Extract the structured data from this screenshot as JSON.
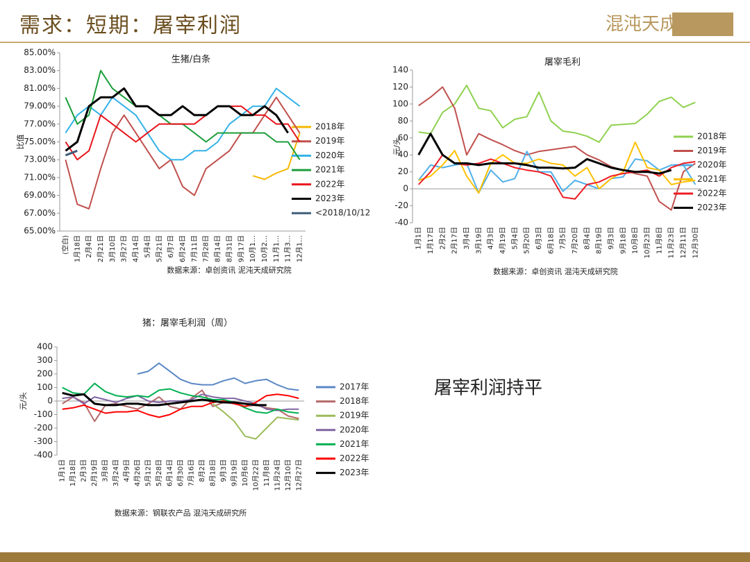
{
  "header": {
    "title": "需求：短期：屠宰利润",
    "logo": "混沌天成研究院"
  },
  "note": "屠宰利润持平",
  "chart_data": [
    {
      "type": "line",
      "title": "生猪/白条",
      "ylabel": "比值",
      "source": "数据来源：卓创资讯 泥沌天成研究院",
      "categories": [
        "(空白)",
        "1月18日",
        "2月4日",
        "2月21日",
        "3月10日",
        "3月27日",
        "4月14日",
        "5月4日",
        "5月21日",
        "6月7日",
        "6月24日",
        "7月11日",
        "7月28日",
        "8月14日",
        "8月31日",
        "9月17日",
        "10月1…",
        "10月2…",
        "11月1…",
        "11月3…",
        "12月1…"
      ],
      "ylim": [
        65,
        85
      ],
      "yticks": [
        {
          "value": 65,
          "label": "65.00%"
        },
        {
          "value": 67,
          "label": "67.00%"
        },
        {
          "value": 69,
          "label": "69.00%"
        },
        {
          "value": 71,
          "label": "71.00%"
        },
        {
          "value": 73,
          "label": "73.00%"
        },
        {
          "value": 75,
          "label": "75.00%"
        },
        {
          "value": 77,
          "label": "77.00%"
        },
        {
          "value": 79,
          "label": "79.00%"
        },
        {
          "value": 81,
          "label": "81.00%"
        },
        {
          "value": 83,
          "label": "83.00%"
        },
        {
          "value": 85,
          "label": "85.00%"
        }
      ],
      "series": [
        {
          "name": "2018年",
          "color": "#f5b800",
          "values": [
            null,
            null,
            null,
            null,
            null,
            null,
            null,
            null,
            null,
            null,
            null,
            null,
            null,
            null,
            null,
            null,
            71.2,
            70.8,
            71.5,
            72,
            76
          ]
        },
        {
          "name": "2019年",
          "color": "#c0504d",
          "values": [
            73,
            68,
            67.5,
            72,
            76,
            78,
            76,
            74,
            72,
            73,
            70,
            69,
            72,
            73,
            74,
            76,
            76,
            78,
            80,
            78,
            76
          ]
        },
        {
          "name": "2020年",
          "color": "#33b2e8",
          "values": [
            76,
            78,
            79,
            78,
            80,
            79,
            78,
            76,
            74,
            73,
            73,
            74,
            74,
            75,
            77,
            78,
            79,
            79,
            81,
            80,
            79
          ]
        },
        {
          "name": "2021年",
          "color": "#1a9e3a",
          "values": [
            80,
            77,
            78,
            83,
            81,
            80,
            79,
            79,
            78,
            77,
            77,
            76,
            75,
            76,
            76,
            76,
            76,
            76,
            75,
            75,
            73
          ]
        },
        {
          "name": "2022年",
          "color": "#e8141b",
          "values": [
            75,
            73,
            74,
            78,
            77,
            76,
            75,
            76,
            77,
            77,
            77,
            77,
            78,
            79,
            79,
            79,
            78,
            78,
            77,
            77,
            75
          ]
        },
        {
          "name": "2023年",
          "color": "#000000",
          "values": [
            74,
            75,
            79,
            80,
            80,
            81,
            79,
            79,
            78,
            78,
            79,
            78,
            78,
            79,
            79,
            78,
            78,
            79,
            78,
            76,
            null
          ]
        },
        {
          "name": "<2018/10/12",
          "color": "#3e5c7a",
          "values": [
            73.5,
            74,
            null,
            null,
            null,
            null,
            null,
            null,
            null,
            null,
            null,
            null,
            null,
            null,
            null,
            null,
            null,
            null,
            null,
            null,
            null
          ]
        }
      ]
    },
    {
      "type": "line",
      "title": "屠宰毛利",
      "ylabel": "元/头",
      "source": "数据来源：卓创资讯 混沌天成研究院",
      "categories": [
        "1月1日",
        "1月17日",
        "2月2日",
        "2月17日",
        "3月4日",
        "3月19日",
        "4月3日",
        "4月19日",
        "5月4日",
        "5月20日",
        "6月3日",
        "6月18日",
        "7月5日",
        "7月20日",
        "8月4日",
        "8月19日",
        "9月3日",
        "9月18日",
        "10月8日",
        "10月23日",
        "11月8日",
        "11月23日",
        "12月11日",
        "12月30日"
      ],
      "ylim": [
        -40,
        140
      ],
      "yticks": [
        -40,
        -20,
        0,
        20,
        40,
        60,
        80,
        100,
        120,
        140
      ],
      "series": [
        {
          "name": "2018年",
          "color": "#8fd14f",
          "values": [
            67,
            65,
            90,
            100,
            122,
            95,
            92,
            72,
            82,
            85,
            114,
            80,
            68,
            66,
            62,
            55,
            75,
            76,
            77,
            88,
            103,
            108,
            96,
            102
          ]
        },
        {
          "name": "2019年",
          "color": "#c0504d",
          "values": [
            98,
            108,
            120,
            95,
            40,
            65,
            58,
            52,
            45,
            40,
            44,
            46,
            48,
            50,
            40,
            34,
            26,
            22,
            18,
            15,
            -15,
            -25,
            20,
            30
          ]
        },
        {
          "name": "2020年",
          "color": "#4fb0e8",
          "values": [
            10,
            28,
            25,
            28,
            30,
            -5,
            22,
            8,
            12,
            44,
            20,
            20,
            -3,
            10,
            5,
            0,
            12,
            14,
            35,
            33,
            22,
            28,
            28,
            5
          ]
        },
        {
          "name": "2021年",
          "color": "#ffc000",
          "values": [
            10,
            15,
            28,
            45,
            15,
            -5,
            30,
            40,
            30,
            30,
            35,
            30,
            28,
            15,
            25,
            0,
            12,
            20,
            55,
            25,
            22,
            5,
            8,
            10
          ]
        },
        {
          "name": "2022年",
          "color": "#ee1c25",
          "values": [
            5,
            20,
            40,
            30,
            28,
            30,
            35,
            30,
            25,
            22,
            20,
            15,
            -10,
            -12,
            5,
            8,
            15,
            18,
            20,
            22,
            15,
            25,
            30,
            32
          ]
        },
        {
          "name": "2023年",
          "color": "#000000",
          "values": [
            40,
            65,
            40,
            30,
            30,
            28,
            30,
            30,
            30,
            28,
            25,
            25,
            24,
            25,
            35,
            30,
            25,
            22,
            20,
            20,
            18,
            22,
            null,
            null
          ]
        }
      ]
    },
    {
      "type": "line",
      "title": "猪：屠宰毛利润（周）",
      "ylabel": "元/头",
      "source": "数据来源：钢联农产品 混沌天成研究所",
      "categories": [
        "1月1日",
        "1月18日",
        "2月3日",
        "2月19日",
        "3月8日",
        "3月24日",
        "4月9日",
        "4月26日",
        "5月12日",
        "5月28日",
        "6月14日",
        "6月30日",
        "7月16日",
        "8月2日",
        "8月18日",
        "9月3日",
        "9月19日",
        "10月6日",
        "10月22日",
        "11月8日",
        "11月24日",
        "12月10日",
        "12月27日"
      ],
      "ylim": [
        -400,
        400
      ],
      "yticks": [
        -400,
        -300,
        -200,
        -100,
        0,
        100,
        200,
        300,
        400
      ],
      "series": [
        {
          "name": "2017年",
          "color": "#5a87c5",
          "values": [
            null,
            null,
            null,
            null,
            null,
            null,
            null,
            200,
            220,
            280,
            220,
            160,
            130,
            120,
            120,
            150,
            170,
            130,
            150,
            160,
            120,
            90,
            80
          ]
        },
        {
          "name": "2018年",
          "color": "#b56a6a",
          "values": [
            -20,
            30,
            -10,
            -150,
            -30,
            -20,
            -40,
            -60,
            -20,
            30,
            -40,
            -60,
            20,
            80,
            -40,
            -10,
            -20,
            -40,
            -30,
            -50,
            -60,
            -110,
            -130
          ]
        },
        {
          "name": "2019年",
          "color": "#9bbb59",
          "values": [
            null,
            null,
            null,
            null,
            null,
            null,
            null,
            null,
            null,
            null,
            null,
            null,
            null,
            null,
            -20,
            -80,
            -150,
            -260,
            -280,
            -200,
            -120,
            -130,
            -140
          ]
        },
        {
          "name": "2020年",
          "color": "#8064a2",
          "values": [
            20,
            30,
            -20,
            30,
            10,
            -10,
            20,
            40,
            0,
            -10,
            0,
            0,
            10,
            50,
            30,
            20,
            20,
            0,
            -20,
            -60,
            -70,
            -60,
            -60
          ]
        },
        {
          "name": "2021年",
          "color": "#00b050",
          "values": [
            100,
            60,
            50,
            130,
            70,
            40,
            30,
            40,
            30,
            80,
            90,
            60,
            40,
            30,
            10,
            10,
            -10,
            -50,
            -80,
            -90,
            -60,
            -80,
            -90
          ]
        },
        {
          "name": "2022年",
          "color": "#ff0000",
          "values": [
            -60,
            -50,
            -30,
            -60,
            -90,
            -80,
            -80,
            -70,
            -100,
            -120,
            -100,
            -60,
            -40,
            -40,
            -10,
            0,
            -20,
            -40,
            -10,
            40,
            50,
            40,
            20
          ]
        },
        {
          "name": "2023年",
          "color": "#000000",
          "values": [
            60,
            40,
            50,
            -20,
            -30,
            -30,
            -20,
            -20,
            -30,
            -30,
            -20,
            -10,
            0,
            10,
            0,
            -10,
            -10,
            -20,
            -30,
            -30,
            null,
            null,
            null
          ]
        }
      ]
    }
  ]
}
